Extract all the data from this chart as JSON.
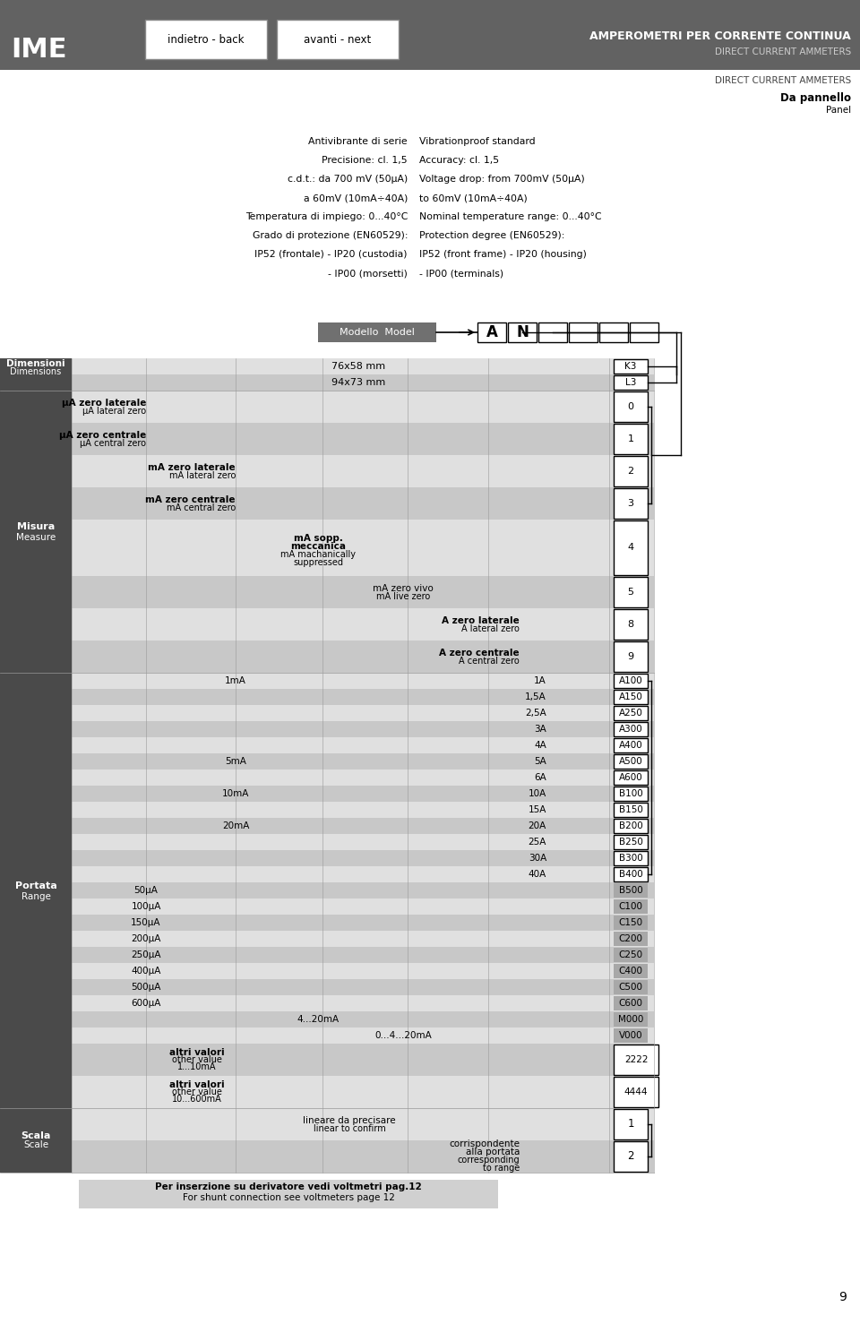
{
  "title_italian": "AMPEROMETRI PER CORRENTE CONTINUA",
  "title_english": "DIRECT CURRENT AMMETERS",
  "panel_label_it": "Da pannello",
  "panel_label_en": "Panel",
  "nav_back": "indietro - back",
  "nav_next": "avanti - next",
  "brand": "IME",
  "specs_italian": [
    "Antivibrante di serie",
    "Precisione: cl. 1,5",
    "c.d.t.: da 700 mV (50μA)",
    "a 60mV (10mA÷40A)",
    "Temperatura di impiego: 0...40°C",
    "Grado di protezione (EN60529):",
    "IP52 (frontale) - IP20 (custodia)",
    "- IP00 (morsetti)"
  ],
  "specs_english": [
    "Vibrationproof standard",
    "Accuracy: cl. 1,5",
    "Voltage drop: from 700mV (50μA)",
    "to 60mV (10mA÷40A)",
    "Nominal temperature range: 0...40°C",
    "Protection degree (EN60529):",
    "IP52 (front frame) - IP20 (housing)",
    "- IP00 (terminals)"
  ],
  "model_label": "Modello  Model",
  "bg_header": "#626262",
  "bg_light_gray": "#e0e0e0",
  "bg_mid_gray": "#c8c8c8",
  "bg_dark_gray": "#4a4a4a",
  "footer_note_it": "Per inserzione su derivatore vedi voltmetri pag.12",
  "footer_note_en": "For shunt connection see voltmeters page 12",
  "page_number": "9"
}
